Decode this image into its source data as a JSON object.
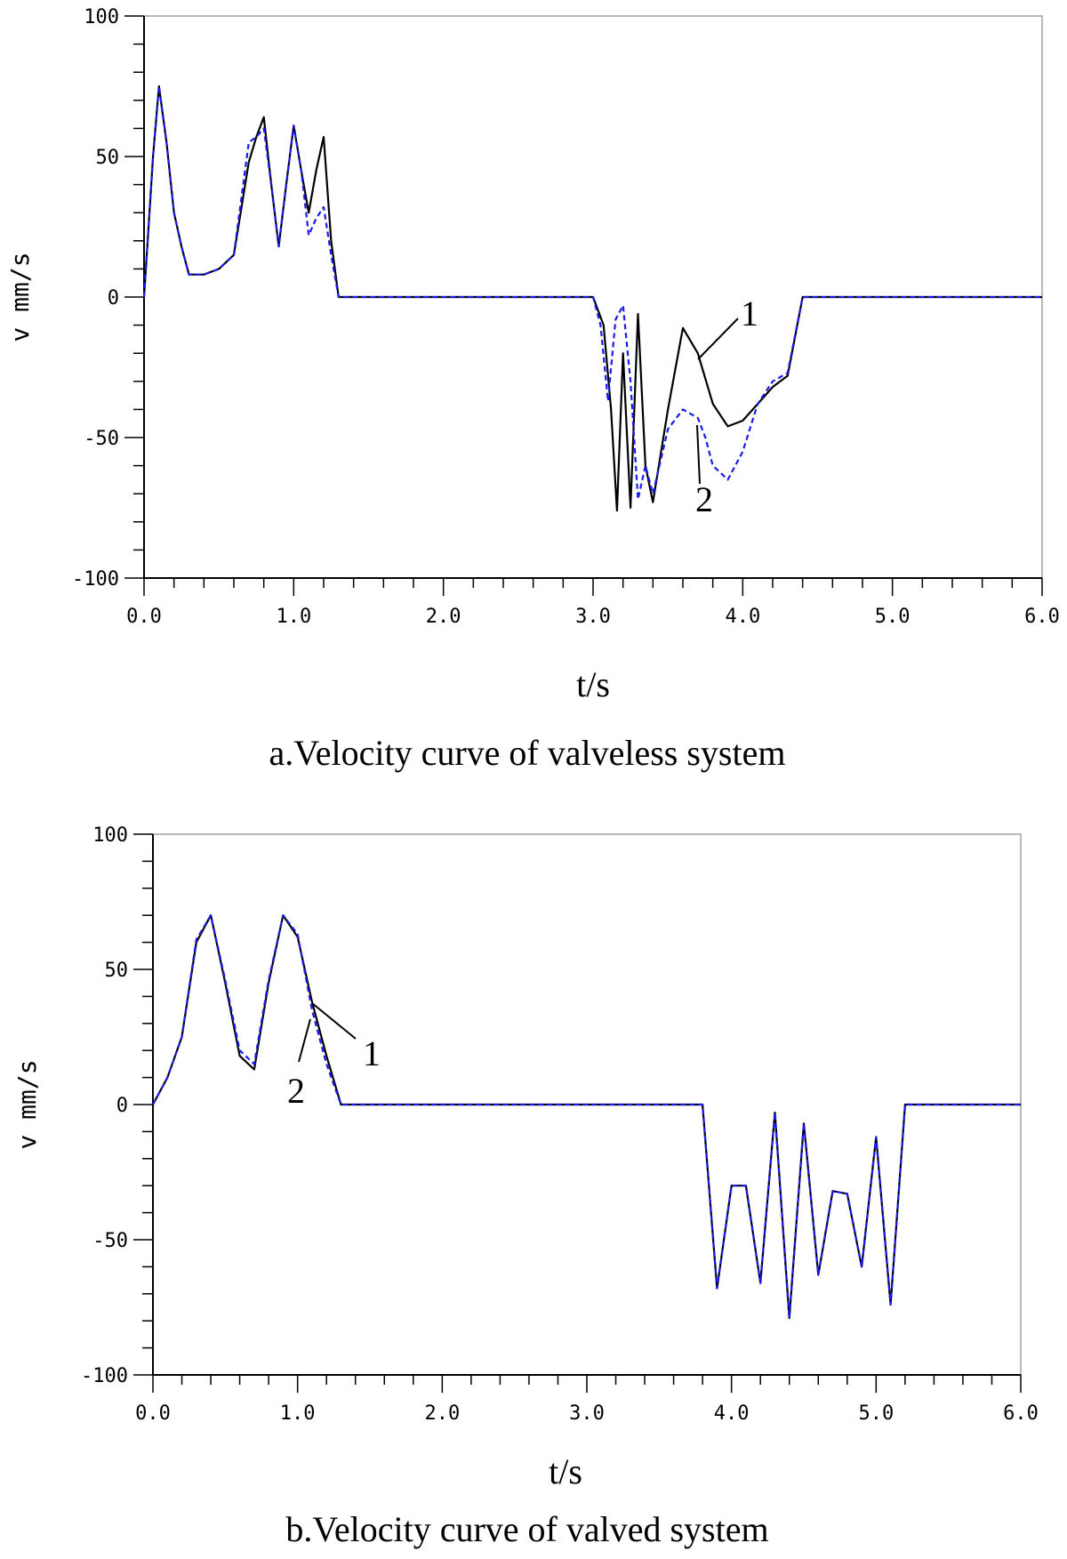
{
  "chart_data": [
    {
      "type": "line",
      "title": "a.Velocity curve of valveless system",
      "xlabel": "t/s",
      "ylabel": "v mm/s",
      "xlim": [
        0,
        6
      ],
      "ylim": [
        -100,
        100
      ],
      "x_ticks": [
        "0.0",
        "1.0",
        "2.0",
        "3.0",
        "4.0",
        "5.0",
        "6.0"
      ],
      "y_ticks": [
        "100",
        "50",
        "0",
        "-50",
        "-100"
      ],
      "series": [
        {
          "name": "1",
          "color": "#000000",
          "dashed": false,
          "x": [
            0,
            0.03,
            0.06,
            0.1,
            0.15,
            0.2,
            0.25,
            0.3,
            0.4,
            0.5,
            0.6,
            0.7,
            0.75,
            0.8,
            0.85,
            0.9,
            0.95,
            1.0,
            1.05,
            1.1,
            1.15,
            1.2,
            1.25,
            1.3,
            1.35,
            3.0,
            3.07,
            3.12,
            3.16,
            3.2,
            3.25,
            3.3,
            3.35,
            3.4,
            3.5,
            3.6,
            3.7,
            3.8,
            3.9,
            4.0,
            4.1,
            4.2,
            4.3,
            4.4,
            4.5,
            5.0,
            6.0
          ],
          "y": [
            0,
            25,
            50,
            75,
            55,
            30,
            18,
            8,
            8,
            10,
            15,
            48,
            57,
            64,
            40,
            18,
            40,
            61,
            45,
            30,
            45,
            57,
            20,
            0,
            0,
            0,
            -10,
            -40,
            -76,
            -20,
            -75,
            -6,
            -60,
            -73,
            -40,
            -11,
            -20,
            -38,
            -46,
            -44,
            -38,
            -32,
            -28,
            0,
            0,
            0,
            0
          ]
        },
        {
          "name": "2",
          "color": "#1a1aee",
          "dashed": true,
          "x": [
            0,
            0.03,
            0.06,
            0.1,
            0.15,
            0.2,
            0.25,
            0.3,
            0.4,
            0.5,
            0.6,
            0.7,
            0.75,
            0.8,
            0.85,
            0.9,
            0.95,
            1.0,
            1.05,
            1.1,
            1.15,
            1.2,
            1.25,
            1.3,
            1.35,
            3.0,
            3.05,
            3.1,
            3.15,
            3.2,
            3.25,
            3.3,
            3.35,
            3.4,
            3.5,
            3.6,
            3.7,
            3.75,
            3.8,
            3.9,
            4.0,
            4.1,
            4.2,
            4.3,
            4.4,
            4.5,
            5.0,
            6.0
          ],
          "y": [
            0,
            25,
            50,
            75,
            55,
            30,
            18,
            8,
            8,
            10,
            15,
            55,
            57,
            60,
            40,
            18,
            40,
            61,
            45,
            22,
            28,
            32,
            15,
            0,
            0,
            0,
            -10,
            -37,
            -8,
            -3,
            -30,
            -72,
            -60,
            -70,
            -47,
            -40,
            -43,
            -50,
            -60,
            -65,
            -55,
            -38,
            -30,
            -27,
            0,
            0,
            0,
            0
          ]
        }
      ],
      "annotations": [
        "1",
        "2"
      ]
    },
    {
      "type": "line",
      "title": "b.Velocity curve of valved system",
      "xlabel": "t/s",
      "ylabel": "v mm/s",
      "xlim": [
        0,
        6
      ],
      "ylim": [
        -100,
        100
      ],
      "x_ticks": [
        "0.0",
        "1.0",
        "2.0",
        "3.0",
        "4.0",
        "5.0",
        "6.0"
      ],
      "y_ticks": [
        "100",
        "50",
        "0",
        "-50",
        "-100"
      ],
      "series": [
        {
          "name": "1",
          "color": "#000000",
          "dashed": false,
          "x": [
            0,
            0.1,
            0.2,
            0.3,
            0.4,
            0.5,
            0.6,
            0.7,
            0.8,
            0.9,
            1.0,
            1.1,
            1.2,
            1.3,
            1.4,
            3.8,
            3.9,
            4.0,
            4.1,
            4.2,
            4.3,
            4.4,
            4.5,
            4.6,
            4.7,
            4.8,
            4.9,
            5.0,
            5.1,
            5.2,
            5.3,
            6.0
          ],
          "y": [
            0,
            10,
            25,
            60,
            70,
            45,
            18,
            13,
            45,
            70,
            62,
            38,
            18,
            0,
            0,
            0,
            -68,
            -30,
            -30,
            -66,
            -3,
            -79,
            -7,
            -63,
            -32,
            -33,
            -60,
            -12,
            -74,
            0,
            0,
            0
          ]
        },
        {
          "name": "2",
          "color": "#1a1aee",
          "dashed": true,
          "x": [
            0,
            0.1,
            0.2,
            0.3,
            0.4,
            0.5,
            0.6,
            0.7,
            0.8,
            0.9,
            1.0,
            1.1,
            1.2,
            1.3,
            1.4,
            3.8,
            3.9,
            4.0,
            4.1,
            4.2,
            4.3,
            4.4,
            4.5,
            4.6,
            4.7,
            4.8,
            4.9,
            5.0,
            5.1,
            5.2,
            5.3,
            6.0
          ],
          "y": [
            0,
            10,
            25,
            61,
            70,
            46,
            20,
            15,
            46,
            70,
            63,
            35,
            15,
            0,
            0,
            0,
            -68,
            -30,
            -30,
            -66,
            -3,
            -79,
            -7,
            -63,
            -32,
            -33,
            -60,
            -12,
            -74,
            0,
            0,
            0
          ]
        }
      ],
      "annotations": [
        "1",
        "2"
      ]
    }
  ]
}
